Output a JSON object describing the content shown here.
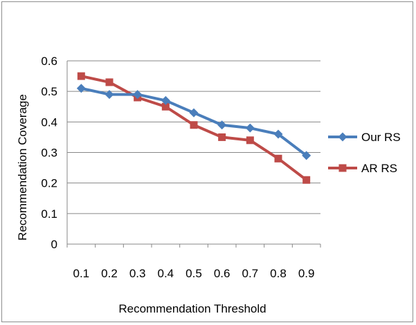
{
  "chart_data": {
    "type": "line",
    "title": "",
    "xlabel": "Recommendation Threshold",
    "ylabel": "Recommendation Coverage",
    "categories": [
      "0.1",
      "0.2",
      "0.3",
      "0.4",
      "0.5",
      "0.6",
      "0.7",
      "0.8",
      "0.9"
    ],
    "y_ticks": [
      "0",
      "0.1",
      "0.2",
      "0.3",
      "0.4",
      "0.5",
      "0.6"
    ],
    "ylim": [
      0,
      0.6
    ],
    "grid": "horizontal",
    "legend_position": "right",
    "series": [
      {
        "name": "Our RS",
        "color": "#4a7ebb",
        "marker": "diamond",
        "values": [
          0.51,
          0.49,
          0.49,
          0.47,
          0.43,
          0.39,
          0.38,
          0.36,
          0.29
        ]
      },
      {
        "name": "AR RS",
        "color": "#be4b48",
        "marker": "square",
        "values": [
          0.55,
          0.53,
          0.48,
          0.45,
          0.39,
          0.35,
          0.34,
          0.28,
          0.21
        ]
      }
    ]
  }
}
